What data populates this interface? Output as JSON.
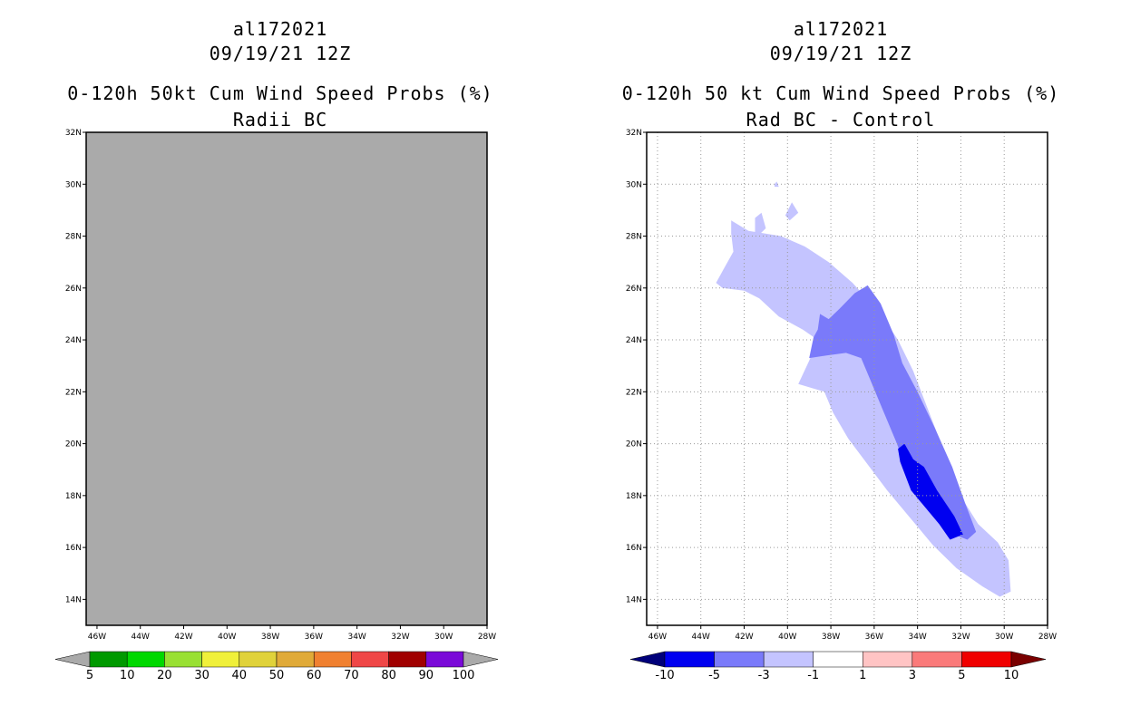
{
  "chart_data": [
    {
      "type": "filled-contour-map",
      "title_lines": [
        "al172021",
        "09/19/21 12Z",
        "0-120h 50kt Cum Wind Speed Probs (%)",
        "Radii BC"
      ],
      "lat_labels": [
        "32N",
        "30N",
        "28N",
        "26N",
        "24N",
        "22N",
        "20N",
        "18N",
        "16N",
        "14N"
      ],
      "lon_labels": [
        "46W",
        "44W",
        "42W",
        "40W",
        "38W",
        "36W",
        "34W",
        "32W",
        "30W",
        "28W"
      ],
      "lat_range": [
        13,
        32
      ],
      "lon_range": [
        -46.5,
        -28
      ],
      "grid": false,
      "field": "missing (uniform gray)",
      "colorbar": {
        "levels": [
          "5",
          "10",
          "20",
          "30",
          "40",
          "50",
          "60",
          "70",
          "80",
          "90",
          "100"
        ],
        "colors": [
          "#009900",
          "#00d800",
          "#99e033",
          "#f0f03a",
          "#e0d23a",
          "#e0aa38",
          "#f08030",
          "#ef4747",
          "#a00000",
          "#7a0ad8"
        ],
        "end_colors": [
          "#aaaaaa",
          "#aaaaaa"
        ]
      },
      "background_color": "#aaaaaa"
    },
    {
      "type": "filled-contour-map",
      "title_lines": [
        "al172021",
        "09/19/21 12Z",
        "0-120h 50 kt Cum Wind Speed Probs (%)",
        "Rad BC - Control"
      ],
      "lat_labels": [
        "32N",
        "30N",
        "28N",
        "26N",
        "24N",
        "22N",
        "20N",
        "18N",
        "16N",
        "14N"
      ],
      "lon_labels": [
        "46W",
        "44W",
        "42W",
        "40W",
        "38W",
        "36W",
        "34W",
        "32W",
        "30W",
        "28W"
      ],
      "lat_range": [
        13,
        32
      ],
      "lon_range": [
        -46.5,
        -28
      ],
      "grid": true,
      "regions": [
        {
          "level": "-1 to -3",
          "color": "#c4c4ff",
          "polygon": [
            [
              -42.6,
              28.6
            ],
            [
              -41.8,
              28.2
            ],
            [
              -40.3,
              28.0
            ],
            [
              -39.2,
              27.6
            ],
            [
              -38.1,
              27.0
            ],
            [
              -37.0,
              26.2
            ],
            [
              -35.7,
              25.0
            ],
            [
              -34.9,
              24.0
            ],
            [
              -34.2,
              22.8
            ],
            [
              -33.6,
              21.5
            ],
            [
              -33.0,
              20.2
            ],
            [
              -32.4,
              19.0
            ],
            [
              -31.8,
              17.7
            ],
            [
              -31.2,
              16.9
            ],
            [
              -30.3,
              16.2
            ],
            [
              -29.8,
              15.5
            ],
            [
              -29.7,
              14.3
            ],
            [
              -30.2,
              14.1
            ],
            [
              -31.0,
              14.5
            ],
            [
              -32.2,
              15.2
            ],
            [
              -33.3,
              16.1
            ],
            [
              -34.4,
              17.2
            ],
            [
              -35.4,
              18.2
            ],
            [
              -36.3,
              19.2
            ],
            [
              -37.2,
              20.2
            ],
            [
              -37.9,
              21.2
            ],
            [
              -38.3,
              22.0
            ],
            [
              -39.5,
              22.3
            ],
            [
              -39.0,
              23.2
            ],
            [
              -38.6,
              24.0
            ],
            [
              -39.3,
              24.4
            ],
            [
              -40.4,
              24.9
            ],
            [
              -41.3,
              25.6
            ],
            [
              -42.0,
              25.9
            ],
            [
              -43.0,
              26.0
            ],
            [
              -43.3,
              26.2
            ],
            [
              -42.9,
              26.8
            ],
            [
              -42.5,
              27.4
            ],
            [
              -42.6,
              28.1
            ]
          ]
        },
        {
          "level": "-1 to -3",
          "color": "#c4c4ff",
          "polygon": [
            [
              -41.5,
              28.7
            ],
            [
              -41.2,
              28.9
            ],
            [
              -41.0,
              28.3
            ],
            [
              -41.5,
              27.9
            ]
          ]
        },
        {
          "level": "-1 to -3",
          "color": "#c4c4ff",
          "polygon": [
            [
              -40.1,
              28.8
            ],
            [
              -39.8,
              29.3
            ],
            [
              -39.5,
              28.9
            ],
            [
              -39.9,
              28.6
            ]
          ]
        },
        {
          "level": "-1 to -3",
          "color": "#c4c4ff",
          "polygon": [
            [
              -40.6,
              30.0
            ],
            [
              -40.5,
              30.1
            ],
            [
              -40.4,
              29.9
            ],
            [
              -40.6,
              29.9
            ]
          ]
        },
        {
          "level": "-3 to -5",
          "color": "#7a7afa",
          "polygon": [
            [
              -37.6,
              25.2
            ],
            [
              -36.9,
              25.8
            ],
            [
              -36.3,
              26.1
            ],
            [
              -35.7,
              25.4
            ],
            [
              -35.1,
              24.2
            ],
            [
              -34.7,
              23.1
            ],
            [
              -34.0,
              22.0
            ],
            [
              -33.2,
              20.6
            ],
            [
              -32.4,
              19.1
            ],
            [
              -31.8,
              17.7
            ],
            [
              -31.3,
              16.6
            ],
            [
              -31.7,
              16.3
            ],
            [
              -32.6,
              16.6
            ],
            [
              -33.5,
              17.4
            ],
            [
              -34.3,
              18.6
            ],
            [
              -35.0,
              20.1
            ],
            [
              -35.6,
              21.3
            ],
            [
              -36.2,
              22.5
            ],
            [
              -36.6,
              23.3
            ],
            [
              -37.3,
              23.5
            ],
            [
              -38.2,
              23.4
            ],
            [
              -39.0,
              23.3
            ],
            [
              -38.8,
              24.1
            ],
            [
              -38.6,
              24.4
            ],
            [
              -38.5,
              25.0
            ],
            [
              -38.1,
              24.8
            ]
          ]
        },
        {
          "level": "-5 to -10",
          "color": "#0000f0",
          "polygon": [
            [
              -34.6,
              20.0
            ],
            [
              -34.2,
              19.4
            ],
            [
              -33.7,
              19.1
            ],
            [
              -33.1,
              18.2
            ],
            [
              -32.3,
              17.2
            ],
            [
              -31.9,
              16.5
            ],
            [
              -32.5,
              16.3
            ],
            [
              -33.0,
              16.9
            ],
            [
              -33.7,
              17.6
            ],
            [
              -34.3,
              18.2
            ],
            [
              -34.8,
              19.3
            ],
            [
              -34.9,
              19.8
            ]
          ]
        }
      ],
      "colorbar": {
        "levels": [
          "-10",
          "-5",
          "-3",
          "-1",
          "1",
          "3",
          "5",
          "10"
        ],
        "colors": [
          "#0000f0",
          "#7a7afa",
          "#c4c4ff",
          "#ffffff",
          "#ffc4c4",
          "#fa7a7a",
          "#f00000"
        ],
        "end_colors": [
          "#00007a",
          "#7a0000"
        ]
      }
    }
  ]
}
